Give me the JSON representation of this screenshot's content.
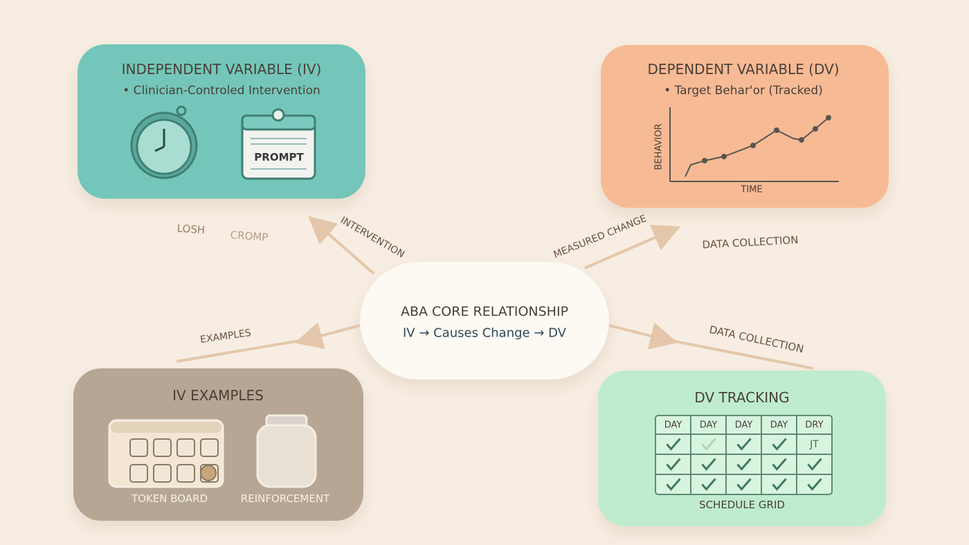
{
  "iv_box": {
    "title": "INDEPENDENT VARIABLE (IV)",
    "bullet": "• Clinician-Controled Intervention",
    "prompt_card": "PROMPT"
  },
  "iv_stray_labels": [
    "LOSH",
    "CROMP"
  ],
  "dv_box": {
    "title": "DEPENDENT VARIABLE (DV)",
    "bullet": "• Target Behar'or (Tracked)",
    "y_label": "BEHAVIOR",
    "x_label": "TIME"
  },
  "center": {
    "title": "ABA CORE RELATIONSHIP",
    "relation": "IV → Causes Change → DV"
  },
  "edges": [
    {
      "label": "INTERVENTION"
    },
    {
      "label": "MEASURED CHANGE"
    },
    {
      "label": "DATA COLLECTION"
    },
    {
      "label": "EXAMPLES"
    },
    {
      "label": "DATA COLLECTION"
    }
  ],
  "iv_examples": {
    "title": "IV EXAMPLES",
    "items": [
      "TOKEN BOARD",
      "REINFORCEMENT"
    ]
  },
  "dv_tracking": {
    "title": "DV TRACKING",
    "headers": [
      "DAY",
      "DAY",
      "DAY",
      "DAY",
      "DRY"
    ],
    "cell_note": "JT",
    "caption": "SCHEDULE GRID"
  }
}
